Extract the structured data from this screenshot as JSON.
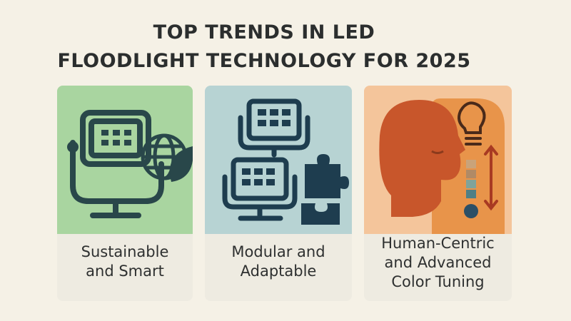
{
  "title_lines": [
    "TOP TRENDS IN LED",
    "FLOODLIGHT TECHNOLOGY FOR 2025"
  ],
  "cards": [
    {
      "label_lines": [
        "Sustainable",
        "and Smart"
      ]
    },
    {
      "label_lines": [
        "Modular and",
        "Adaptable"
      ]
    },
    {
      "label_lines": [
        "Human-Centric",
        "and Advanced",
        "Color Tuning"
      ]
    }
  ]
}
